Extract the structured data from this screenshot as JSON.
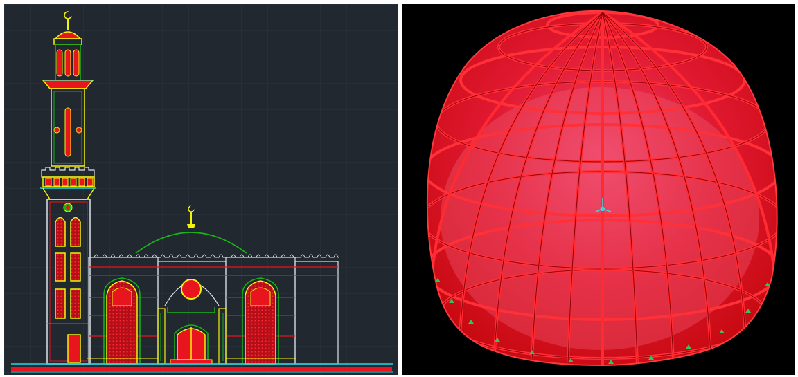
{
  "panels": {
    "left": {
      "kind": "cad-elevation",
      "subject": "mosque-facade-with-minaret"
    },
    "right": {
      "kind": "3d-structural-model",
      "subject": "ribbed-dome"
    }
  },
  "colors": {
    "cad_background": "#212830",
    "cad_grid": "#2c3440",
    "cad_red": "#e8141e",
    "cad_yellow": "#f2f20a",
    "cad_green": "#18b418",
    "cad_cyan": "#22d8e8",
    "cad_white": "#dde4ea",
    "dome_background": "#000000",
    "dome_fill": "#dc0a14",
    "dome_rib": "#ff2a32",
    "dome_glass": "#f05a74",
    "support_marker": "#2ec85a",
    "axis_marker": "#3ad6e6"
  },
  "icons": {
    "crescent": "crescent-finial-icon",
    "axis": "axis-triad-icon",
    "support": "support-pin-icon"
  }
}
